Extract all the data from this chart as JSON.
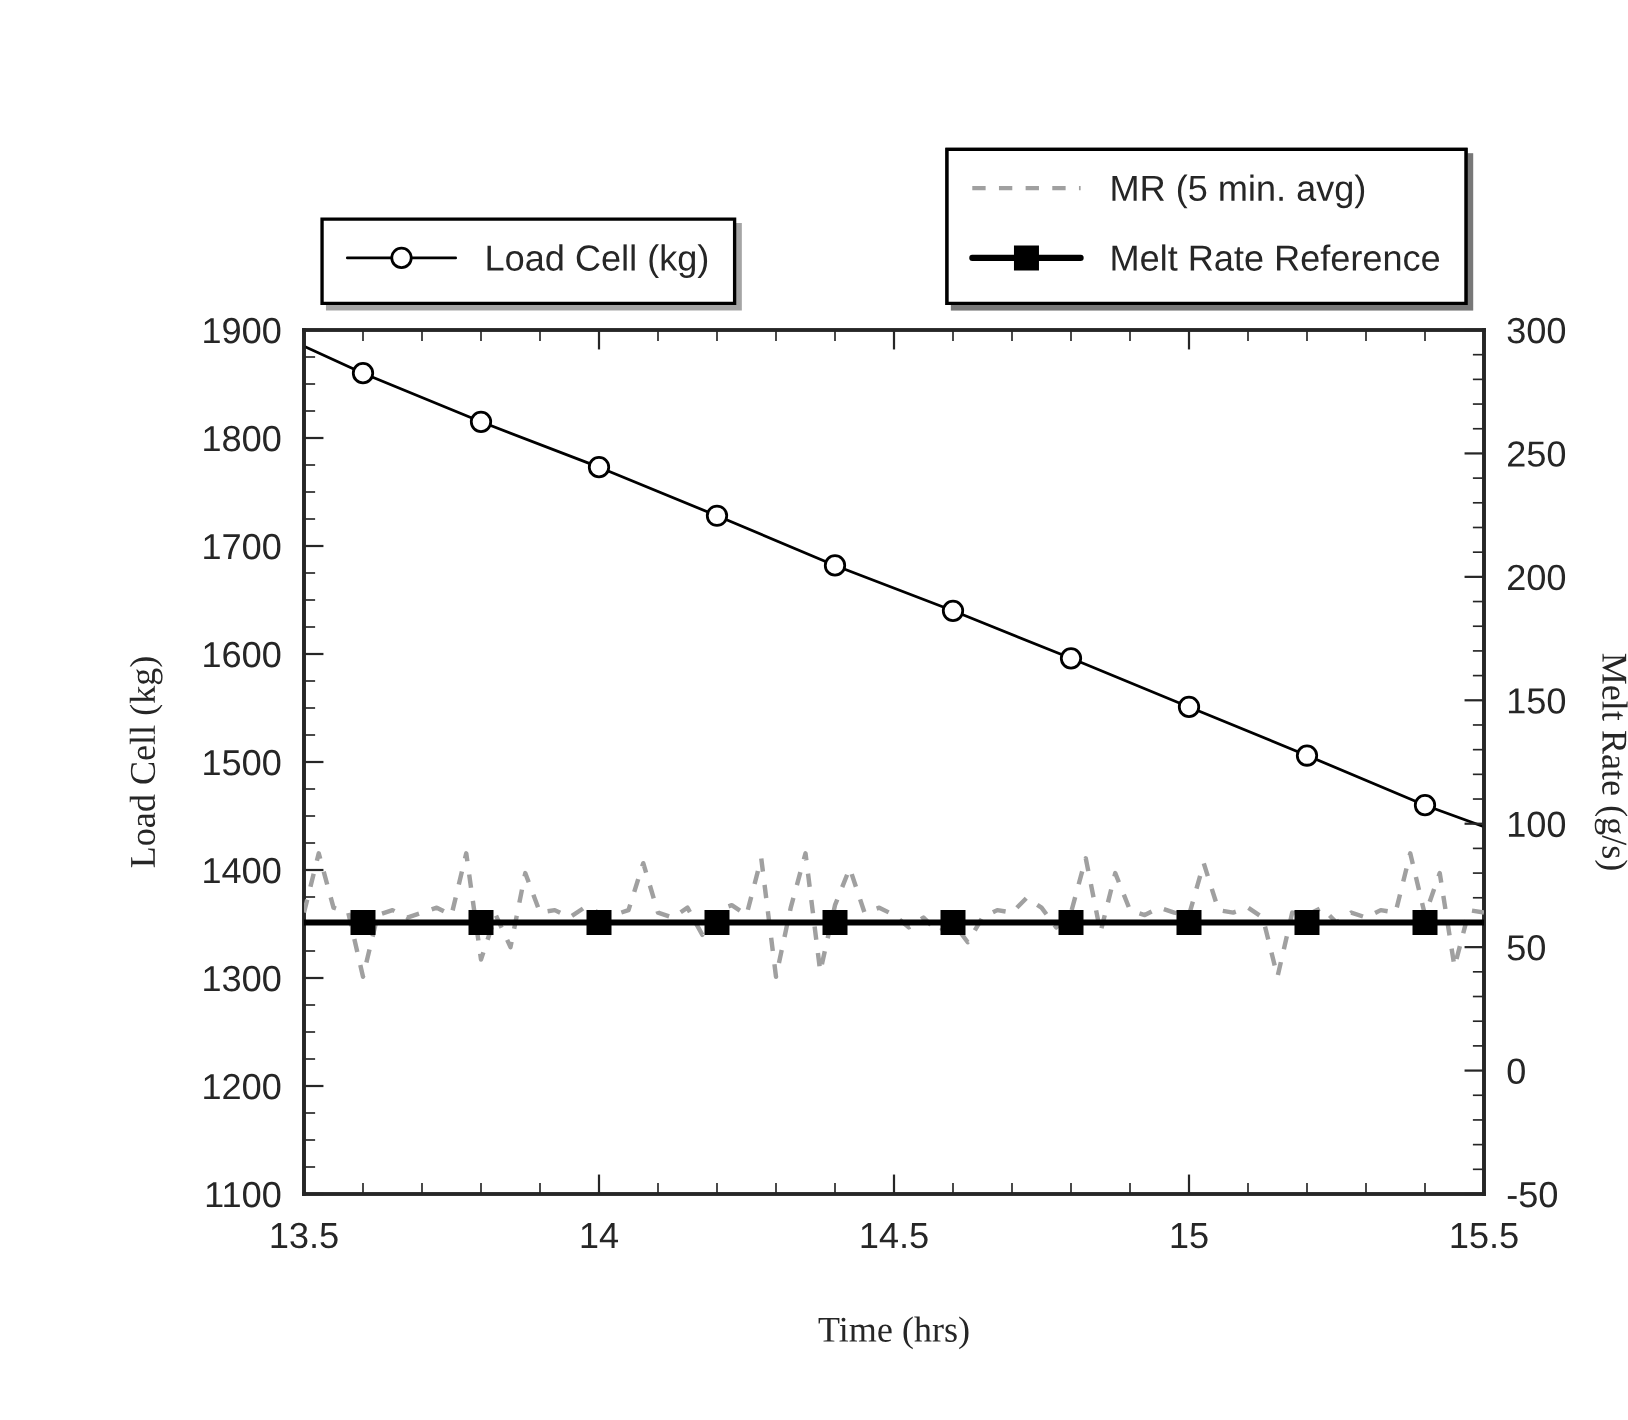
{
  "chart_data": {
    "type": "line",
    "xlabel": "Time (hrs)",
    "ylabel": "Load Cell (kg)",
    "y2label": "Melt Rate (g/s)",
    "xlim": [
      13.5,
      15.5
    ],
    "xticks": [
      13.5,
      14,
      14.5,
      15,
      15.5
    ],
    "ylim": [
      1100,
      1900
    ],
    "yticks": [
      1100,
      1200,
      1300,
      1400,
      1500,
      1600,
      1700,
      1800,
      1900
    ],
    "y2lim": [
      -50,
      300
    ],
    "y2ticks": [
      -50,
      0,
      50,
      100,
      150,
      200,
      250,
      300
    ],
    "grid": false,
    "legend": "top",
    "series": [
      {
        "name": "Load Cell (kg)",
        "color": "#000000",
        "marker": "circle",
        "line_style": "solid",
        "x": [
          13.5,
          13.6,
          13.8,
          14,
          14.2,
          14.4,
          14.6,
          14.8,
          15,
          15.2,
          15.4,
          15.5
        ],
        "values": [
          1885,
          1860,
          1815,
          1773,
          1728,
          1682,
          1640,
          1596,
          1551,
          1506,
          1460,
          1440
        ]
      },
      {
        "name": "MR (5 min. avg)",
        "color": "#a0a0a0",
        "marker": "none",
        "line_style": "dashed",
        "axis": "y2",
        "x": [
          13.5,
          13.525,
          13.55,
          13.575,
          13.6,
          13.625,
          13.65,
          13.675,
          13.7,
          13.725,
          13.75,
          13.775,
          13.8,
          13.825,
          13.85,
          13.875,
          13.9,
          13.925,
          13.95,
          13.975,
          14,
          14.025,
          14.05,
          14.075,
          14.1,
          14.125,
          14.15,
          14.175,
          14.2,
          14.225,
          14.25,
          14.275,
          14.3,
          14.325,
          14.35,
          14.375,
          14.4,
          14.425,
          14.45,
          14.475,
          14.5,
          14.525,
          14.55,
          14.575,
          14.6,
          14.625,
          14.65,
          14.675,
          14.7,
          14.725,
          14.75,
          14.775,
          14.8,
          14.825,
          14.85,
          14.875,
          14.9,
          14.925,
          14.95,
          14.975,
          15,
          15.025,
          15.05,
          15.075,
          15.1,
          15.125,
          15.15,
          15.175,
          15.2,
          15.225,
          15.25,
          15.275,
          15.3,
          15.325,
          15.35,
          15.375,
          15.4,
          15.425,
          15.45,
          15.475,
          15.5
        ],
        "values": [
          64,
          88,
          66,
          64,
          38,
          63,
          65,
          62,
          64,
          66,
          63,
          88,
          45,
          63,
          50,
          80,
          64,
          65,
          62,
          66,
          64,
          63,
          65,
          84,
          64,
          62,
          66,
          55,
          65,
          67,
          63,
          86,
          38,
          66,
          88,
          40,
          67,
          82,
          64,
          66,
          63,
          58,
          62,
          56,
          60,
          52,
          62,
          65,
          64,
          70,
          66,
          58,
          64,
          86,
          56,
          80,
          65,
          63,
          66,
          64,
          63,
          84,
          65,
          64,
          66,
          62,
          38,
          64,
          63,
          66,
          60,
          64,
          62,
          65,
          64,
          88,
          63,
          80,
          42,
          65,
          64
        ]
      },
      {
        "name": "Melt Rate Reference",
        "color": "#000000",
        "marker": "square",
        "line_style": "solid",
        "axis": "y2",
        "x": [
          13.5,
          13.6,
          13.8,
          14,
          14.2,
          14.4,
          14.6,
          14.8,
          15,
          15.2,
          15.4,
          15.5
        ],
        "values": [
          60,
          60,
          60,
          60,
          60,
          60,
          60,
          60,
          60,
          60,
          60,
          60
        ]
      }
    ]
  }
}
